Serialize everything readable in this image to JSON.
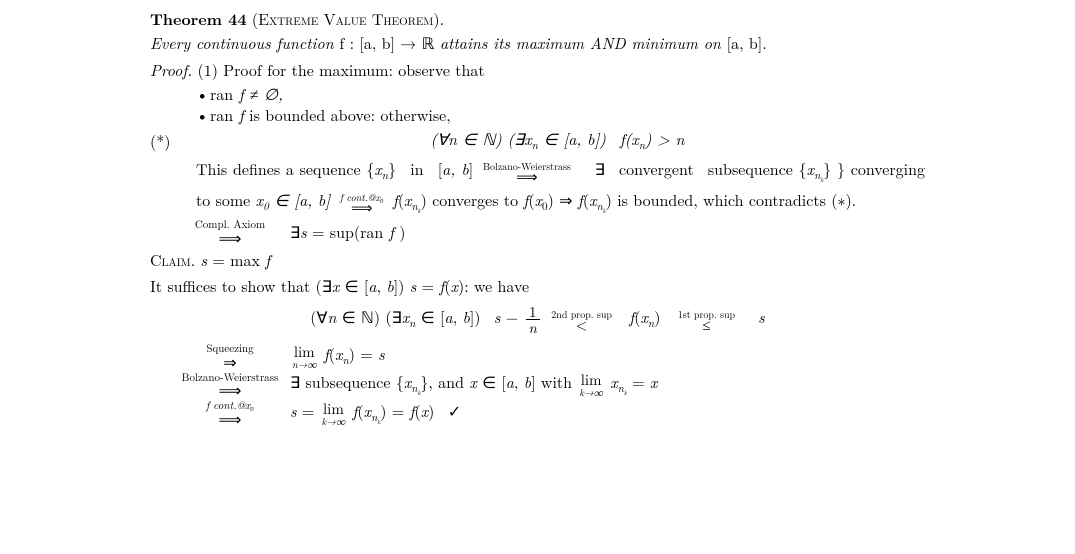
{
  "theorem": {
    "label": "Theorem 44",
    "name_open": "(",
    "name": "Extreme Value Theorem",
    "name_close": ").",
    "statement_pre": "Every continuous function ",
    "statement_math": "f : [a, b] → ℝ",
    "statement_post": " attains its maximum AND minimum on ",
    "statement_tail": "[a, b]."
  },
  "proof": {
    "head": "Proof.",
    "line1": " (1) Proof for the maximum: observe that",
    "bullet1_a": "ran",
    "bullet1_b": " f ≠ ∅,",
    "bullet2_a": "ran",
    "bullet2_b": " f is bounded above: otherwise,",
    "eq_tag": "(*)",
    "eq_star": "(∀n ∈ ℕ) (∃xₙ ∈ [a, b])  f(xₙ) > n",
    "para_a": "This defines a sequence {",
    "para_b": "xₙ",
    "para_c": "} in [",
    "para_d": "a, b",
    "para_e": "] ",
    "arrow_bw": "Bolzano-Weierstrass",
    "long_imp": "⟹",
    "para_f": " ∃ convergent subsequence {",
    "para_g": "x",
    "para_g_sub": "n",
    "para_g_subsub": "k",
    "para_h": "} converging to some ",
    "para_i": "x₀ ∈ [a, b] ",
    "arrow_cont": "f cont.@x₀",
    "para_j": " f(x",
    "para_k": ") converges to f(x₀) ⇒ f(x",
    "para_l": ") is bounded, which contradicts (∗).",
    "step_compl_top": "Compl. Axiom",
    "step_compl_body": "∃s = sup(ran f )",
    "claim_label": "Claim.",
    "claim_body": " s = max f",
    "suffices": "It suffices to show that (∃x ∈ [a, b]) s = f(x): we have",
    "eq2_a": "(∀n ∈ ℕ) (∃xₙ ∈ [a, b])  s − ",
    "eq2_frac_num": "1",
    "eq2_frac_den": "n",
    "eq2_rel1_top": "2nd prop. sup",
    "eq2_rel1_sym": "<",
    "eq2_mid": " f(xₙ) ",
    "eq2_rel2_top": "1st prop. sup",
    "eq2_rel2_sym": "≤",
    "eq2_end": " s",
    "step_sq_top": "Squeezing",
    "dbl_imp": "⇒",
    "step_sq_lim_top": "lim",
    "step_sq_lim_bot": "n→∞",
    "step_sq_body": " f(xₙ) = s",
    "step_bw_top": "Bolzano-Weierstrass",
    "step_bw_body_a": "∃ subsequence {x",
    "step_bw_body_b": "}, and x ∈ [a, b] with ",
    "step_bw_lim_top": "lim",
    "step_bw_lim_bot": "k→∞",
    "step_bw_body_c": " x",
    "step_bw_body_d": " = x",
    "step_cont_top": "f cont.@x₀",
    "step_cont_a": "s = ",
    "step_cont_lim_top": "lim",
    "step_cont_lim_bot": "k→∞",
    "step_cont_b": " f(x",
    "step_cont_c": ") = f(x)  ✓"
  }
}
